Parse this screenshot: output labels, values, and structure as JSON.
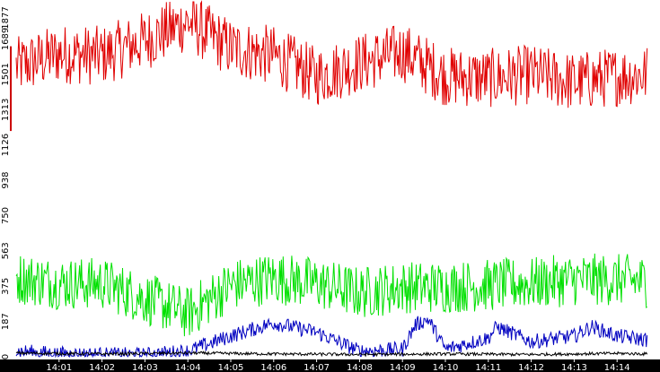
{
  "chart_data": {
    "type": "line",
    "title": "",
    "xlabel": "",
    "ylabel": "",
    "ylim": [
      0,
      1877
    ],
    "xlim_minutes": [
      14.0,
      15.0
    ],
    "y_ticks": [
      "0",
      "187",
      "375",
      "563",
      "750",
      "938",
      "1126",
      "1313",
      "1501",
      "1689",
      "1877"
    ],
    "x_ticks": [
      "14:01",
      "14:02",
      "14:03",
      "14:04",
      "14:05",
      "14:06",
      "14:07",
      "14:08",
      "14:09",
      "14:10",
      "14:11",
      "14:12",
      "14:13",
      "14:14"
    ],
    "grid": false,
    "legend": "none",
    "series_summary": [
      {
        "color": "#e00000",
        "segments": [
          [
            0,
            1540
          ],
          [
            1,
            1610
          ],
          [
            2,
            1600
          ],
          [
            3,
            1680
          ],
          [
            4,
            1780
          ],
          [
            5,
            1640
          ],
          [
            6,
            1600
          ],
          [
            7,
            1490
          ],
          [
            8,
            1560
          ],
          [
            9,
            1620
          ],
          [
            10,
            1490
          ],
          [
            11,
            1480
          ],
          [
            12,
            1500
          ],
          [
            13,
            1460
          ],
          [
            14,
            1490
          ],
          [
            14.7,
            1500
          ]
        ]
      },
      {
        "color": "#00e000",
        "segments": [
          [
            0,
            420
          ],
          [
            1,
            390
          ],
          [
            2,
            390
          ],
          [
            3,
            310
          ],
          [
            4,
            230
          ],
          [
            5,
            380
          ],
          [
            6,
            420
          ],
          [
            7,
            390
          ],
          [
            8,
            340
          ],
          [
            9,
            370
          ],
          [
            10,
            370
          ],
          [
            11,
            380
          ],
          [
            12,
            390
          ],
          [
            13,
            410
          ],
          [
            14,
            410
          ],
          [
            14.7,
            400
          ]
        ]
      },
      {
        "color": "#0000c0",
        "segments": [
          [
            0,
            30
          ],
          [
            1,
            15
          ],
          [
            2,
            12
          ],
          [
            3,
            10
          ],
          [
            4,
            30
          ],
          [
            5,
            110
          ],
          [
            6,
            180
          ],
          [
            7,
            130
          ],
          [
            8,
            30
          ],
          [
            9,
            40
          ],
          [
            9.3,
            170
          ],
          [
            9.6,
            200
          ],
          [
            10,
            40
          ],
          [
            11,
            100
          ],
          [
            11.2,
            160
          ],
          [
            12,
            80
          ],
          [
            13,
            110
          ],
          [
            13.4,
            160
          ],
          [
            14,
            110
          ],
          [
            14.7,
            90
          ]
        ]
      },
      {
        "color": "#000000",
        "segments": [
          [
            0,
            20
          ],
          [
            2,
            15
          ],
          [
            4,
            20
          ],
          [
            6,
            15
          ],
          [
            8,
            12
          ],
          [
            10,
            15
          ],
          [
            12,
            12
          ],
          [
            14,
            18
          ],
          [
            14.7,
            15
          ]
        ]
      }
    ],
    "series_colors": {
      "red": "#e00000",
      "green": "#00e000",
      "blue": "#0000c0",
      "black": "#000000"
    }
  }
}
